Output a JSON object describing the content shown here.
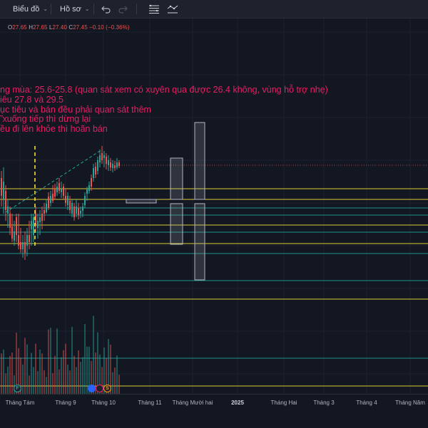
{
  "toolbar": {
    "chart_label": "Biểu đồ",
    "profile_label": "Hồ sơ"
  },
  "ohlc": {
    "o_label": "O",
    "o": "27.65",
    "h_label": "H",
    "h": "27.65",
    "l_label": "L",
    "l": "27.40",
    "c_label": "C",
    "c": "27.45",
    "change": "−0.10 (−0.36%)"
  },
  "note": {
    "lines": [
      "ng mùa: 25.6-25.8 (quan sát xem có  xuyên qua được 26.4 không, vùng hỗ trợ nhẹ)",
      "iêu 27.8 và 29.5",
      "ục tiêu và bán đều phải quan sát thêm",
      "̃ xuống tiếp thì dừng lại",
      "ều đi lên khỏe thì hoãn bán"
    ]
  },
  "xaxis": {
    "labels": [
      "Tháng Tám",
      "Tháng 9",
      "Tháng 10",
      "Tháng 11",
      "Tháng Mười hai",
      "2025",
      "Tháng Hai",
      "Tháng 3",
      "Tháng 4",
      "Tháng Năm"
    ]
  },
  "events": {
    "f": "F",
    "s": "S"
  },
  "colors": {
    "background": "#131722",
    "up": "#26a69a",
    "down": "#ef5350",
    "annotation": "#e91e63",
    "level_yellow": "#ffeb3b",
    "level_teal": "#26a69a"
  }
}
